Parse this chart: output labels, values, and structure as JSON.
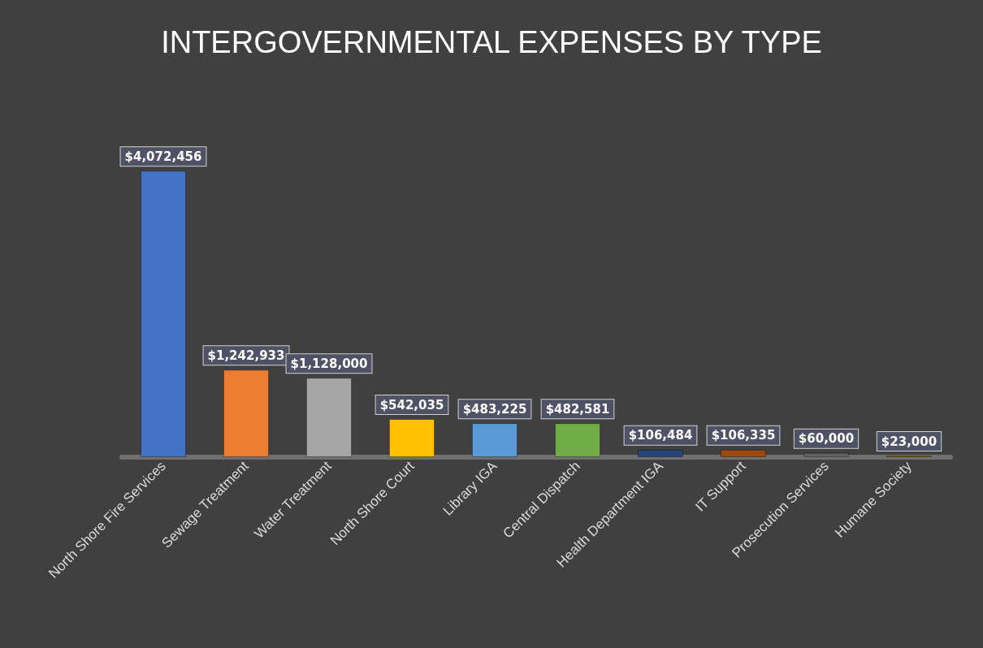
{
  "chart_data": {
    "type": "bar",
    "title": "INTERGOVERNMENTAL EXPENSES BY TYPE",
    "categories": [
      "North Shore Fire Services",
      "Sewage Treatment",
      "Water Treatment",
      "North Shore Court",
      "Library IGA",
      "Central Dispatch",
      "Health Department IGA",
      "IT Support",
      "Prosecution Services",
      "Humane Society"
    ],
    "values": [
      4072456,
      1242933,
      1128000,
      542035,
      483225,
      482581,
      106484,
      106335,
      60000,
      23000
    ],
    "value_labels": [
      "$4,072,456",
      "$1,242,933",
      "$1,128,000",
      "$542,035",
      "$483,225",
      "$482,581",
      "$106,484",
      "$106,335",
      "$60,000",
      "$23,000"
    ],
    "colors": [
      "#4472c4",
      "#ed7d31",
      "#a5a5a5",
      "#ffc000",
      "#5b9bd5",
      "#70ad47",
      "#264478",
      "#9e480e",
      "#636363",
      "#997300"
    ]
  }
}
